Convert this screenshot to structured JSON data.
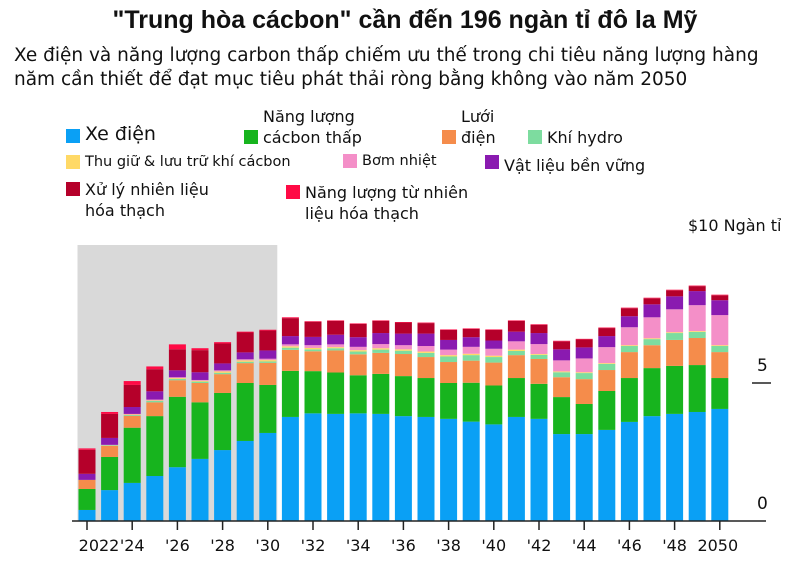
{
  "title": "\"Trung hòa cácbon\" cần đến 196 ngàn tỉ đô la Mỹ",
  "subtitle": "Xe điện và năng lượng carbon thấp chiếm ưu thế trong chi tiêu năng lượng hàng năm cần thiết để đạt mục tiêu phát thải ròng bằng không vào năm 2050",
  "chart_data": {
    "type": "bar",
    "stacked": true,
    "title": "\"Trung hòa cácbon\" cần đến 196 ngàn tỉ đô la Mỹ",
    "subtitle": "Xe điện và năng lượng carbon thấp chiếm ưu thế trong chi tiêu năng lượng hàng năm cần thiết để đạt mục tiêu phát thải ròng bằng không vào năm 2050",
    "unit_label": "$10 Ngàn tỉ",
    "ylim": [
      0,
      10
    ],
    "y_ticks": [
      "0",
      "5"
    ],
    "y_axis_side": "right",
    "grid": false,
    "shaded_region": {
      "from": 2022,
      "to": 2030,
      "color": "#d9d9d9"
    },
    "x": [
      2022,
      2023,
      2024,
      2025,
      2026,
      2027,
      2028,
      2029,
      2030,
      2031,
      2032,
      2033,
      2034,
      2035,
      2036,
      2037,
      2038,
      2039,
      2040,
      2041,
      2042,
      2043,
      2044,
      2045,
      2046,
      2047,
      2048,
      2049,
      2050
    ],
    "x_tick_labels": [
      "2022",
      "'24",
      "'26",
      "'28",
      "'30",
      "'32",
      "'34",
      "'36",
      "'38",
      "'40",
      "'42",
      "'44",
      "'46",
      "'48",
      "2050"
    ],
    "legend_position": "top-left",
    "series": [
      {
        "name": "Xe điện",
        "color": "#0aa0f5",
        "values": [
          0.4,
          1.12,
          1.38,
          1.63,
          1.95,
          2.25,
          2.57,
          2.9,
          3.19,
          3.77,
          3.9,
          3.88,
          3.9,
          3.88,
          3.8,
          3.77,
          3.7,
          3.6,
          3.5,
          3.77,
          3.7,
          3.15,
          3.15,
          3.3,
          3.59,
          3.8,
          3.88,
          3.95,
          4.06
        ]
      },
      {
        "name": "Năng lượng\ncácbon thấp",
        "color": "#17b41e",
        "values": [
          0.76,
          1.2,
          2.0,
          2.17,
          2.55,
          2.05,
          2.07,
          2.1,
          1.74,
          1.67,
          1.53,
          1.5,
          1.38,
          1.45,
          1.45,
          1.41,
          1.3,
          1.41,
          1.41,
          1.41,
          1.27,
          1.34,
          1.09,
          1.41,
          1.59,
          1.74,
          1.74,
          1.7,
          1.12
        ]
      },
      {
        "name": "Lưới\nđiện",
        "color": "#f58c4b",
        "values": [
          0.33,
          0.4,
          0.43,
          0.5,
          0.6,
          0.7,
          0.68,
          0.72,
          0.8,
          0.76,
          0.72,
          0.8,
          0.76,
          0.76,
          0.8,
          0.76,
          0.76,
          0.8,
          0.83,
          0.83,
          0.9,
          0.72,
          0.9,
          0.76,
          0.94,
          0.83,
          0.94,
          0.98,
          0.94
        ]
      },
      {
        "name": "Khí hydro",
        "color": "#7ddc9f",
        "values": [
          0,
          0.02,
          0.03,
          0.05,
          0.05,
          0.05,
          0.05,
          0.05,
          0.05,
          0.08,
          0.07,
          0.08,
          0.1,
          0.12,
          0.12,
          0.15,
          0.2,
          0.2,
          0.2,
          0.15,
          0.15,
          0.18,
          0.22,
          0.22,
          0.22,
          0.22,
          0.25,
          0.22,
          0.22
        ]
      },
      {
        "name": "Thu giữ & lưu trữ khí cácbon",
        "color": "#ffd966",
        "values": [
          0,
          0.01,
          0.02,
          0.02,
          0.03,
          0.03,
          0.05,
          0.05,
          0.05,
          0.05,
          0.05,
          0.04,
          0.05,
          0.05,
          0.05,
          0.05,
          0.05,
          0.05,
          0.05,
          0.05,
          0.03,
          0.03,
          0.03,
          0.03,
          0.03,
          0.03,
          0.03,
          0.03,
          0.03
        ]
      },
      {
        "name": "Bơm nhiệt",
        "color": "#f48fc8",
        "values": [
          0,
          0.01,
          0.02,
          0.03,
          0.03,
          0.03,
          0.04,
          0.04,
          0.05,
          0.07,
          0.1,
          0.1,
          0.12,
          0.15,
          0.15,
          0.2,
          0.2,
          0.25,
          0.25,
          0.3,
          0.36,
          0.4,
          0.5,
          0.58,
          0.65,
          0.76,
          0.83,
          0.94,
          1.09
        ]
      },
      {
        "name": "Vật liệu bền vững",
        "color": "#8a1ab0",
        "values": [
          0.22,
          0.25,
          0.25,
          0.3,
          0.25,
          0.28,
          0.25,
          0.25,
          0.3,
          0.3,
          0.3,
          0.35,
          0.35,
          0.4,
          0.42,
          0.45,
          0.35,
          0.35,
          0.3,
          0.35,
          0.4,
          0.4,
          0.4,
          0.4,
          0.4,
          0.47,
          0.47,
          0.51,
          0.54
        ]
      },
      {
        "name": "Xử lý nhiên liệu\nhóa thạch",
        "color": "#b5002a",
        "values": [
          0.87,
          0.87,
          0.8,
          0.8,
          0.76,
          0.8,
          0.72,
          0.72,
          0.72,
          0.65,
          0.55,
          0.5,
          0.48,
          0.44,
          0.4,
          0.38,
          0.36,
          0.3,
          0.38,
          0.39,
          0.3,
          0.29,
          0.29,
          0.29,
          0.29,
          0.22,
          0.22,
          0.18,
          0.18
        ]
      },
      {
        "name": "Năng lượng từ nhiên\nliệu hóa thạch",
        "color": "#ff0a45",
        "values": [
          0.05,
          0.07,
          0.14,
          0.1,
          0.18,
          0.07,
          0.05,
          0.03,
          0.03,
          0.03,
          0.02,
          0.02,
          0.02,
          0.02,
          0.02,
          0.02,
          0.02,
          0.02,
          0.02,
          0.02,
          0.02,
          0.02,
          0.02,
          0.02,
          0.02,
          0.02,
          0.02,
          0.02,
          0.02
        ]
      }
    ]
  }
}
